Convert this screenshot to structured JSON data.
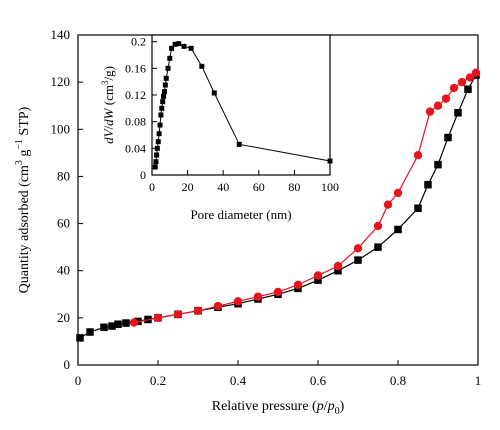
{
  "chart_data": [
    {
      "type": "line",
      "xlabel_parts": [
        "Relative pressure (",
        "p",
        "/",
        "p",
        "0",
        ")"
      ],
      "ylabel_parts": [
        "Quantity adsorbed (cm",
        "3",
        " g",
        "−1",
        " STP)"
      ],
      "xlim": [
        0,
        1
      ],
      "ylim": [
        0,
        140
      ],
      "xticks": [
        "0",
        "0.2",
        "0.4",
        "0.6",
        "0.8",
        "1"
      ],
      "yticks": [
        "0",
        "20",
        "40",
        "60",
        "80",
        "100",
        "120",
        "140"
      ],
      "grid": false,
      "series": [
        {
          "color": "#000000",
          "marker": "square",
          "points": [
            [
              0.005,
              11.5
            ],
            [
              0.03,
              14
            ],
            [
              0.065,
              16
            ],
            [
              0.085,
              16.5
            ],
            [
              0.1,
              17.3
            ],
            [
              0.12,
              17.8
            ],
            [
              0.15,
              18.5
            ],
            [
              0.175,
              19.3
            ],
            [
              0.2,
              20
            ],
            [
              0.25,
              21.5
            ],
            [
              0.3,
              23
            ],
            [
              0.35,
              24.5
            ],
            [
              0.4,
              26
            ],
            [
              0.45,
              28
            ],
            [
              0.5,
              30
            ],
            [
              0.55,
              32.5
            ],
            [
              0.6,
              36
            ],
            [
              0.65,
              40
            ],
            [
              0.7,
              44.5
            ],
            [
              0.75,
              50
            ],
            [
              0.8,
              57.5
            ],
            [
              0.85,
              66.5
            ],
            [
              0.875,
              76.5
            ],
            [
              0.9,
              85
            ],
            [
              0.925,
              96.5
            ],
            [
              0.95,
              107
            ],
            [
              0.975,
              117
            ],
            [
              0.995,
              123
            ]
          ]
        },
        {
          "color": "#e8141d",
          "marker": "circle",
          "points": [
            [
              0.995,
              124
            ],
            [
              0.98,
              122
            ],
            [
              0.96,
              120
            ],
            [
              0.94,
              117.5
            ],
            [
              0.92,
              113
            ],
            [
              0.9,
              110
            ],
            [
              0.88,
              107.5
            ],
            [
              0.85,
              89
            ],
            [
              0.8,
              73
            ],
            [
              0.775,
              68
            ],
            [
              0.75,
              59
            ],
            [
              0.7,
              49.5
            ],
            [
              0.65,
              42
            ],
            [
              0.6,
              38
            ],
            [
              0.55,
              34
            ],
            [
              0.5,
              31
            ],
            [
              0.45,
              29
            ],
            [
              0.4,
              27
            ],
            [
              0.35,
              25
            ],
            [
              0.3,
              23
            ],
            [
              0.25,
              21.5
            ],
            [
              0.2,
              20
            ],
            [
              0.14,
              18
            ]
          ]
        }
      ]
    },
    {
      "type": "line",
      "inset": true,
      "xlabel": "Pore diameter (nm)",
      "ylabel_parts": [
        "dV",
        "/",
        "dW",
        " (cm",
        "3",
        "/g)"
      ],
      "xlim": [
        0,
        100
      ],
      "ylim": [
        0,
        0.21
      ],
      "xticks": [
        "0",
        "20",
        "40",
        "60",
        "80",
        "100"
      ],
      "yticks": [
        "0",
        "0.04",
        "0.08",
        "0.12",
        "0.16",
        "0.2"
      ],
      "series": [
        {
          "color": "#000000",
          "marker": "square",
          "points": [
            [
              1.8,
              0.012
            ],
            [
              2.2,
              0.02
            ],
            [
              2.6,
              0.03
            ],
            [
              3,
              0.04
            ],
            [
              3.5,
              0.05
            ],
            [
              4,
              0.062
            ],
            [
              4.5,
              0.075
            ],
            [
              5,
              0.09
            ],
            [
              5.5,
              0.1
            ],
            [
              6,
              0.11
            ],
            [
              6.5,
              0.118
            ],
            [
              7,
              0.125
            ],
            [
              7.5,
              0.135
            ],
            [
              8,
              0.145
            ],
            [
              9,
              0.16
            ],
            [
              10,
              0.175
            ],
            [
              11,
              0.19
            ],
            [
              13,
              0.196
            ],
            [
              15,
              0.197
            ],
            [
              18,
              0.193
            ],
            [
              22,
              0.19
            ],
            [
              28,
              0.163
            ],
            [
              35,
              0.123
            ],
            [
              49,
              0.046
            ],
            [
              100,
              0.021
            ]
          ]
        }
      ]
    }
  ]
}
